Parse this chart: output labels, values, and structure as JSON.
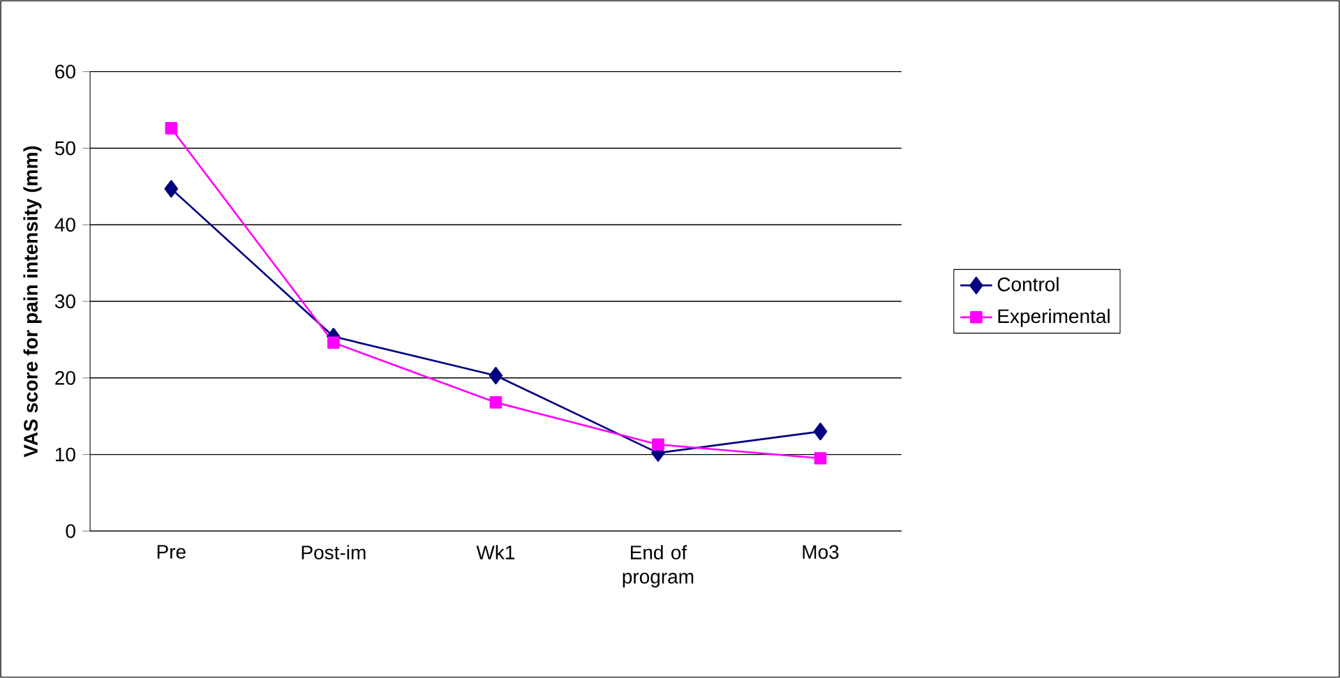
{
  "chart_data": {
    "type": "line",
    "ylabel": "**VAS score for pain intensity (mm)**",
    "categories": [
      "Pre",
      "Post-im",
      "Wk1",
      "End of program",
      "Mo3"
    ],
    "series": [
      {
        "name": "Control",
        "color": "#000080",
        "marker": "diamond",
        "values": [
          44.7,
          25.4,
          20.3,
          10.2,
          13.0
        ]
      },
      {
        "name": "Experimental",
        "color": "#ff00ff",
        "marker": "square",
        "values": [
          52.6,
          24.6,
          16.8,
          11.3,
          9.5
        ]
      }
    ],
    "ylim": [
      0,
      60
    ],
    "yticks": [
      0,
      10,
      20,
      30,
      40,
      50,
      60
    ],
    "grid": "y",
    "legend": "right",
    "line_style": "solid"
  }
}
